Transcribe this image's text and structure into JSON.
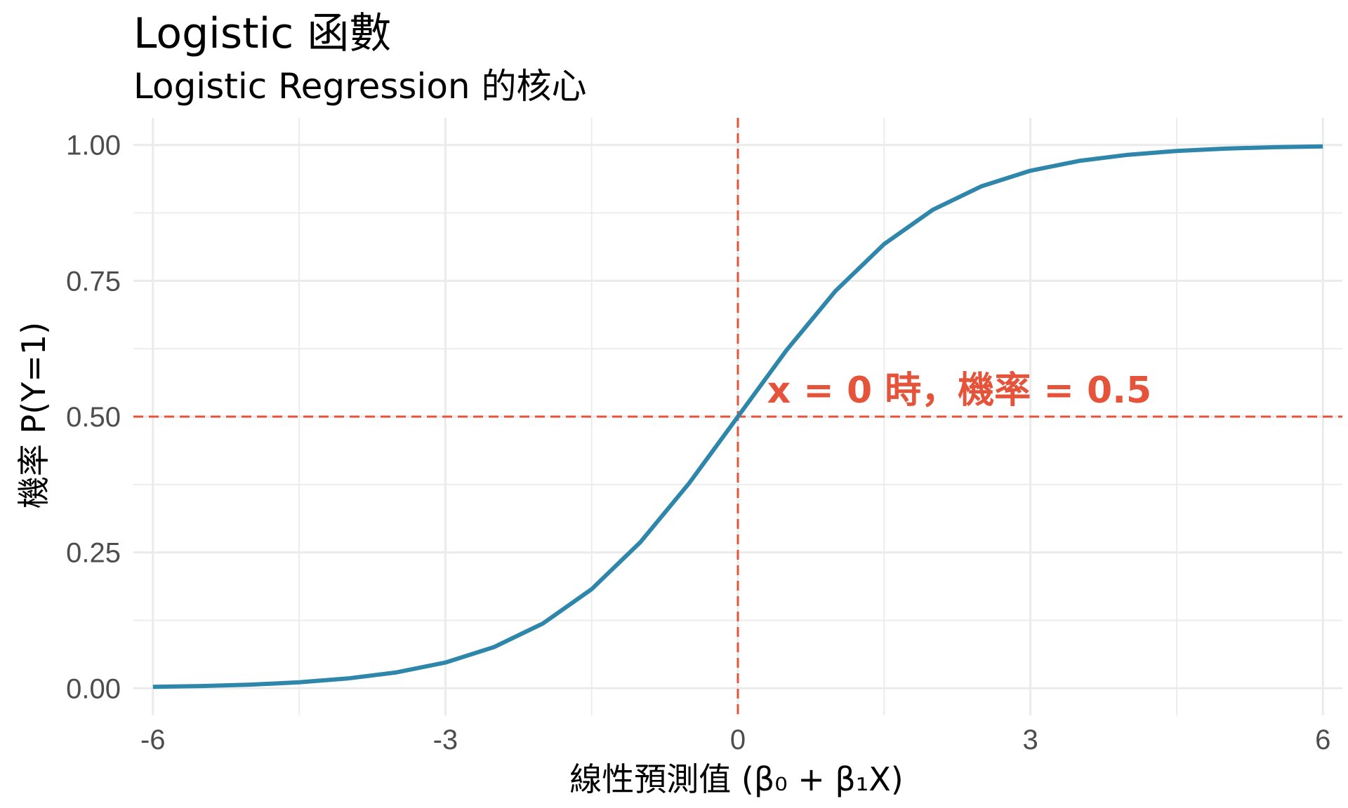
{
  "chart_data": {
    "type": "line",
    "title": "Logistic 函數",
    "subtitle": "Logistic Regression 的核心",
    "xlabel": "線性預測值 (β₀ + β₁X)",
    "ylabel": "機率 P(Y=1)",
    "xlim": [
      -6.2,
      6.2
    ],
    "ylim": [
      -0.05,
      1.05
    ],
    "x_ticks": [
      -6,
      -3,
      0,
      3,
      6
    ],
    "x_tick_labels": [
      "-6",
      "-3",
      "0",
      "3",
      "6"
    ],
    "y_ticks": [
      0,
      0.25,
      0.5,
      0.75,
      1
    ],
    "y_tick_labels": [
      "0.00",
      "0.25",
      "0.50",
      "0.75",
      "1.00"
    ],
    "x_minor": [
      -4.5,
      -1.5,
      1.5,
      4.5
    ],
    "y_minor": [
      0.125,
      0.375,
      0.625,
      0.875
    ],
    "grid": true,
    "series": [
      {
        "color": "#2e86ab",
        "x": [
          -6,
          -5.5,
          -5,
          -4.5,
          -4,
          -3.5,
          -3,
          -2.5,
          -2,
          -1.5,
          -1,
          -0.5,
          0,
          0.5,
          1,
          1.5,
          2,
          2.5,
          3,
          3.5,
          4,
          4.5,
          5,
          5.5,
          6
        ],
        "y": [
          0.0025,
          0.0041,
          0.0067,
          0.011,
          0.018,
          0.0293,
          0.0474,
          0.0759,
          0.1192,
          0.1824,
          0.2689,
          0.3775,
          0.5,
          0.6225,
          0.7311,
          0.8176,
          0.8808,
          0.9241,
          0.9526,
          0.9707,
          0.982,
          0.989,
          0.9933,
          0.9959,
          0.9975
        ]
      }
    ],
    "reference_lines": {
      "vertical_x": 0,
      "horizontal_y": 0.5,
      "color": "#e4533a"
    },
    "annotation": {
      "text": "x = 0 時，機率 = 0.5",
      "x": 0.3,
      "y": 0.5,
      "color": "#e4533a"
    }
  }
}
